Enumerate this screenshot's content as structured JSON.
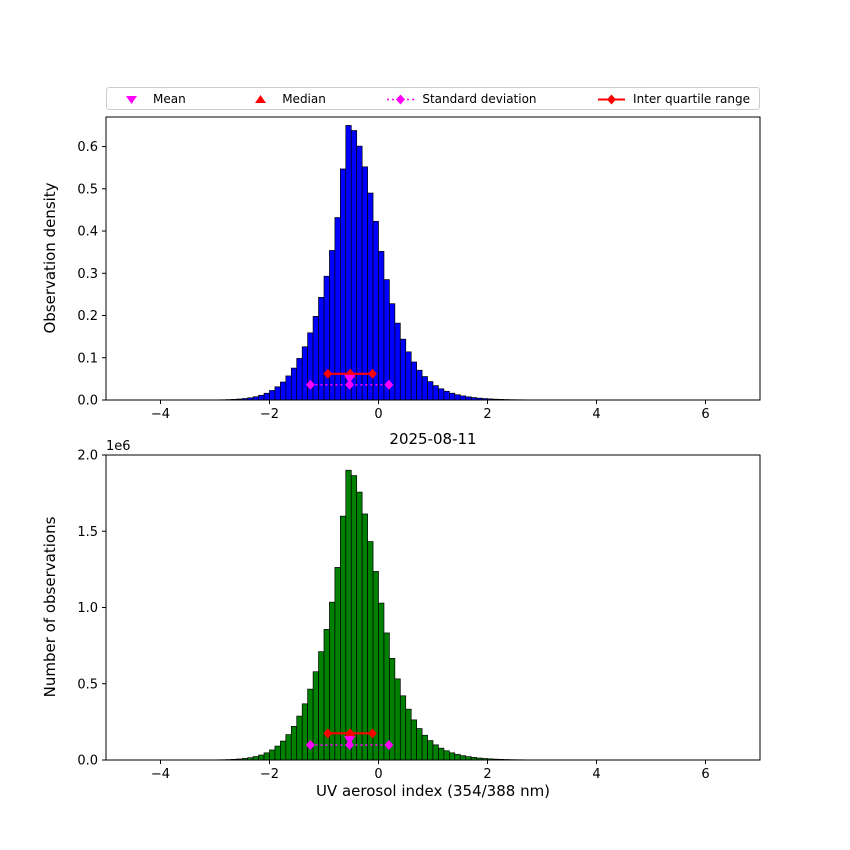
{
  "title": "2025-08-11",
  "colors": {
    "mean": "#ff00ff",
    "median": "#ff0000",
    "std": "#ff00ff",
    "iqr": "#ff0000",
    "bar_edge": "#000000",
    "background": "#ffffff"
  },
  "legend": {
    "items": [
      {
        "label": "Mean",
        "marker": "triangle-down",
        "color": "#ff00ff"
      },
      {
        "label": "Median",
        "marker": "triangle-up",
        "color": "#ff0000"
      },
      {
        "label": "Standard deviation",
        "marker": "diamond-dotted",
        "color": "#ff00ff"
      },
      {
        "label": "Inter quartile range",
        "marker": "diamond-solid",
        "color": "#ff0000"
      }
    ]
  },
  "stats": {
    "mean": -0.53,
    "median": -0.52,
    "std": 0.72,
    "q1": -0.93,
    "q3": -0.11
  },
  "chart_data": [
    {
      "type": "bar",
      "name": "observation-density",
      "ylabel": "Observation density",
      "bar_color": "#0000ff",
      "xlim": [
        -5,
        7
      ],
      "ylim": [
        0,
        0.67
      ],
      "xticks": [
        -4,
        -2,
        0,
        2,
        4,
        6
      ],
      "xtick_labels": [
        "−4",
        "−2",
        "0",
        "2",
        "4",
        "6"
      ],
      "yticks": [
        0,
        0.1,
        0.2,
        0.3,
        0.4,
        0.5,
        0.6
      ],
      "ytick_labels": [
        "0.0",
        "0.1",
        "0.2",
        "0.3",
        "0.4",
        "0.5",
        "0.6"
      ],
      "bin_start": -3.0,
      "bin_width": 0.1,
      "values": [
        0.0004,
        0.0006,
        0.001,
        0.0015,
        0.0023,
        0.0035,
        0.0052,
        0.0077,
        0.0112,
        0.016,
        0.0225,
        0.0312,
        0.0425,
        0.057,
        0.0755,
        0.0985,
        0.126,
        0.159,
        0.198,
        0.243,
        0.293,
        0.354,
        0.432,
        0.547,
        0.65,
        0.638,
        0.601,
        0.552,
        0.49,
        0.423,
        0.352,
        0.285,
        0.228,
        0.182,
        0.144,
        0.114,
        0.09,
        0.0705,
        0.0555,
        0.0435,
        0.034,
        0.0265,
        0.0207,
        0.0161,
        0.0125,
        0.0097,
        0.0075,
        0.0058,
        0.0044,
        0.0034,
        0.0026,
        0.0019,
        0.0015,
        0.0011,
        0.0008,
        0.0006,
        0.0005
      ],
      "marker_y": {
        "mean": 0.05,
        "median": 0.062,
        "std": 0.036,
        "iqr": 0.062
      }
    },
    {
      "type": "bar",
      "name": "number-of-observations",
      "title": "2025-08-11",
      "xlabel": "UV aerosol index (354/388 nm)",
      "ylabel": "Number of observations",
      "offset_text": "1e6",
      "bar_color": "#008000",
      "xlim": [
        -5,
        7
      ],
      "ylim": [
        0,
        2000000
      ],
      "xticks": [
        -4,
        -2,
        0,
        2,
        4,
        6
      ],
      "xtick_labels": [
        "−4",
        "−2",
        "0",
        "2",
        "4",
        "6"
      ],
      "yticks": [
        0,
        500000,
        1000000,
        1500000,
        2000000
      ],
      "ytick_labels": [
        "0.0",
        "0.5",
        "1.0",
        "1.5",
        "2.0"
      ],
      "bin_start": -3.0,
      "bin_width": 0.1,
      "values": [
        1200,
        1800,
        2900,
        4400,
        6700,
        10200,
        15200,
        22500,
        32700,
        46800,
        65800,
        91200,
        124200,
        166600,
        220700,
        287900,
        368300,
        464800,
        578800,
        710300,
        856400,
        1034800,
        1262800,
        1598900,
        1900000,
        1864900,
        1756700,
        1613500,
        1432300,
        1236400,
        1028900,
        833100,
        666400,
        532000,
        420900,
        333200,
        263100,
        206100,
        162200,
        127200,
        99400,
        77500,
        60500,
        47100,
        36500,
        28400,
        21900,
        17000,
        12900,
        9900,
        7600,
        5600,
        4400,
        3200,
        2300,
        1800,
        1500
      ],
      "marker_y": {
        "mean": 130000,
        "median": 175000,
        "std": 98000,
        "iqr": 175000
      }
    }
  ]
}
